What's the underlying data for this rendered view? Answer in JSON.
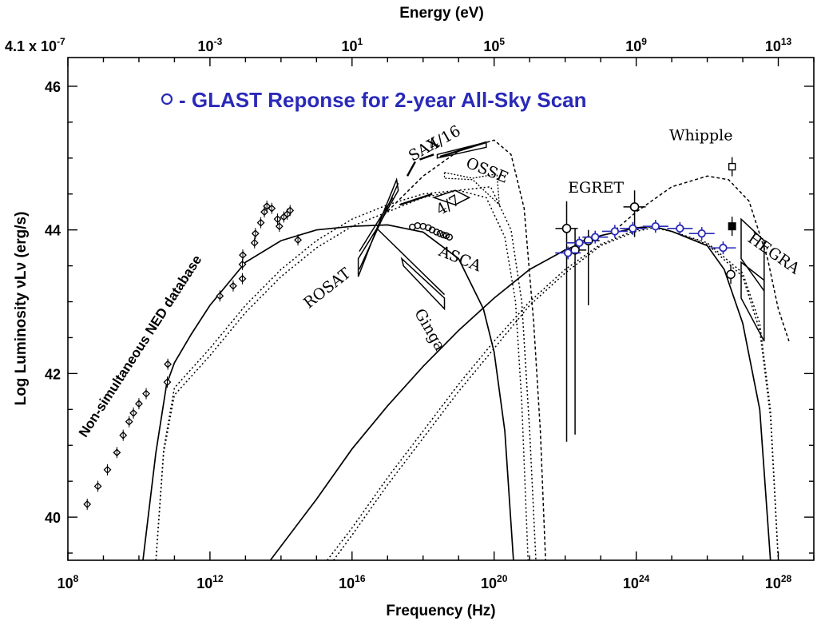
{
  "chart_data": {
    "type": "scatter",
    "title": "- GLAST Reponse for 2-year All-Sky Scan",
    "xlabel": "Frequency (Hz)",
    "ylabel": "Log Luminosity νLν (erg/s)",
    "x2label": "Energy (eV)",
    "x_scale": "log",
    "xlim": [
      100000000.0,
      1e+29
    ],
    "ylim": [
      39.4,
      46.4
    ],
    "x_ticks": [
      {
        "value": 100000000.0,
        "base": "10",
        "exp": "8"
      },
      {
        "value": 1000000000000.0,
        "base": "10",
        "exp": "12"
      },
      {
        "value": 1e+16,
        "base": "10",
        "exp": "16"
      },
      {
        "value": 1e+20,
        "base": "10",
        "exp": "20"
      },
      {
        "value": 1e+24,
        "base": "10",
        "exp": "24"
      },
      {
        "value": 1e+28,
        "base": "10",
        "exp": "28"
      }
    ],
    "y_ticks": [
      40,
      42,
      44,
      46
    ],
    "x2_ticks": [
      {
        "value": 100000000.0,
        "base": "4.1 x 10",
        "exp": "-7"
      },
      {
        "value": 1000000000000.0,
        "base": "10",
        "exp": "-3"
      },
      {
        "value": 1e+16,
        "base": "10",
        "exp": "1"
      },
      {
        "value": 1e+20,
        "base": "10",
        "exp": "5"
      },
      {
        "value": 1e+24,
        "base": "10",
        "exp": "9"
      },
      {
        "value": 1e+28,
        "base": "10",
        "exp": "13"
      }
    ],
    "annotations": [
      {
        "text": "Non-simultaneous NED database",
        "x": 320000000.0,
        "y": 41.1,
        "rotate": -57,
        "style": "sans"
      },
      {
        "text": "ROSAT",
        "x": 600000000000000.0,
        "y": 42.9,
        "rotate": -38,
        "style": "serif"
      },
      {
        "text": "Ginga",
        "x": 5.6e+17,
        "y": 42.85,
        "rotate": 60,
        "style": "serif"
      },
      {
        "text": "ASCA",
        "x": 2.6e+18,
        "y": 43.65,
        "rotate": 22,
        "style": "serif"
      },
      {
        "text": "4/7",
        "x": 3e+18,
        "y": 44.2,
        "rotate": -30,
        "style": "serif"
      },
      {
        "text": "SAX",
        "x": 5e+17,
        "y": 44.95,
        "rotate": -30,
        "style": "serif"
      },
      {
        "text": "4/16",
        "x": 1.8e+18,
        "y": 45.1,
        "rotate": -30,
        "style": "serif"
      },
      {
        "text": "OSSE",
        "x": 1.5e+19,
        "y": 44.88,
        "rotate": 22,
        "style": "serif"
      },
      {
        "text": "EGRET",
        "x": 1.2e+22,
        "y": 44.52,
        "rotate": 0,
        "style": "serif"
      },
      {
        "text": "Whipple",
        "x": 8.5e+24,
        "y": 45.25,
        "rotate": 0,
        "style": "serif"
      },
      {
        "text": "HEGRA",
        "x": 1.3e+27,
        "y": 43.85,
        "rotate": 35,
        "style": "serif"
      }
    ],
    "ned_points": [
      {
        "x": 350000000.0,
        "y": 40.18
      },
      {
        "x": 700000000.0,
        "y": 40.43
      },
      {
        "x": 1300000000.0,
        "y": 40.66
      },
      {
        "x": 2400000000.0,
        "y": 40.9
      },
      {
        "x": 3600000000.0,
        "y": 41.14
      },
      {
        "x": 5300000000.0,
        "y": 41.33
      },
      {
        "x": 7000000000.0,
        "y": 41.45
      },
      {
        "x": 10000000000.0,
        "y": 41.58
      },
      {
        "x": 16000000000.0,
        "y": 41.72
      },
      {
        "x": 63000000000.0,
        "y": 41.88
      },
      {
        "x": 65000000000.0,
        "y": 42.13
      },
      {
        "x": 1900000000000.0,
        "y": 43.08
      },
      {
        "x": 4500000000000.0,
        "y": 43.22
      },
      {
        "x": 8200000000000.0,
        "y": 43.32
      },
      {
        "x": 8200000000000.0,
        "y": 43.52
      },
      {
        "x": 8400000000000.0,
        "y": 43.65
      },
      {
        "x": 18000000000000.0,
        "y": 43.82
      },
      {
        "x": 19000000000000.0,
        "y": 43.95
      },
      {
        "x": 27000000000000.0,
        "y": 44.1
      },
      {
        "x": 34000000000000.0,
        "y": 44.25
      },
      {
        "x": 40000000000000.0,
        "y": 44.33
      },
      {
        "x": 55000000000000.0,
        "y": 44.3
      },
      {
        "x": 80000000000000.0,
        "y": 44.15
      },
      {
        "x": 90000000000000.0,
        "y": 44.05
      },
      {
        "x": 120000000000000.0,
        "y": 44.18
      },
      {
        "x": 150000000000000.0,
        "y": 44.22
      },
      {
        "x": 180000000000000.0,
        "y": 44.27
      },
      {
        "x": 300000000000000.0,
        "y": 43.86
      }
    ],
    "asca_points": [
      {
        "x": 5e+17,
        "y": 44.04
      },
      {
        "x": 7e+17,
        "y": 44.06
      },
      {
        "x": 1e+18,
        "y": 44.05
      },
      {
        "x": 1.4e+18,
        "y": 44.03
      },
      {
        "x": 1.8e+18,
        "y": 44.0
      },
      {
        "x": 2.4e+18,
        "y": 43.97
      },
      {
        "x": 3e+18,
        "y": 43.95
      },
      {
        "x": 3.7e+18,
        "y": 43.93
      },
      {
        "x": 4.5e+18,
        "y": 43.92
      },
      {
        "x": 5.5e+18,
        "y": 43.9
      }
    ],
    "egret_points": [
      {
        "x": 1.1e+22,
        "y": 44.02,
        "ylo": 41.05,
        "yhi": 44.4
      },
      {
        "x": 1.9e+22,
        "y": 43.72,
        "ylo": 41.15,
        "yhi": 44.02
      },
      {
        "x": 4.5e+22,
        "y": 43.85,
        "ylo": 42.95,
        "yhi": 44.0
      },
      {
        "x": 9e+23,
        "y": 44.32,
        "ylo": 43.9,
        "yhi": 44.55
      }
    ],
    "whipple_points": [
      {
        "x": 5e+26,
        "y": 44.88,
        "marker": "open-square"
      },
      {
        "x": 5e+26,
        "y": 44.05,
        "marker": "filled-square"
      },
      {
        "x": 4.6e+26,
        "y": 43.38,
        "marker": "open-circle"
      }
    ],
    "glast_points": [
      {
        "x": 1.2e+22,
        "y": 43.68
      },
      {
        "x": 2.5e+22,
        "y": 43.82
      },
      {
        "x": 7e+22,
        "y": 43.9
      },
      {
        "x": 2.5e+23,
        "y": 43.98
      },
      {
        "x": 8e+23,
        "y": 44.02
      },
      {
        "x": 3.5e+24,
        "y": 44.05
      },
      {
        "x": 1.7e+25,
        "y": 44.02
      },
      {
        "x": 7e+25,
        "y": 43.95
      },
      {
        "x": 2.8e+26,
        "y": 43.75
      }
    ],
    "series_curves": [
      {
        "style": "solid",
        "points": [
          [
            13000000000.0,
            39.4
          ],
          [
            30000000000.0,
            40.9
          ],
          [
            60000000000.0,
            41.85
          ],
          [
            100000000000.0,
            42.15
          ],
          [
            300000000000.0,
            42.55
          ],
          [
            1000000000000.0,
            42.95
          ],
          [
            10000000000000.0,
            43.55
          ],
          [
            100000000000000.0,
            43.85
          ],
          [
            1000000000000000.0,
            44.0
          ],
          [
            1e+16,
            44.05
          ],
          [
            1e+17,
            44.07
          ],
          [
            1e+18,
            43.97
          ],
          [
            1e+19,
            43.6
          ],
          [
            5e+19,
            42.9
          ],
          [
            1e+20,
            42.3
          ],
          [
            2e+20,
            41.2
          ],
          [
            3.5e+20,
            39.4
          ]
        ]
      },
      {
        "style": "dotted",
        "points": [
          [
            30000000000.0,
            39.4
          ],
          [
            50000000000.0,
            40.95
          ],
          [
            100000000000.0,
            41.8
          ],
          [
            1000000000000.0,
            42.35
          ],
          [
            10000000000000.0,
            42.95
          ],
          [
            100000000000000.0,
            43.45
          ],
          [
            1000000000000000.0,
            43.85
          ],
          [
            1e+16,
            44.15
          ],
          [
            1e+17,
            44.35
          ],
          [
            1e+18,
            44.5
          ],
          [
            1e+19,
            44.55
          ],
          [
            6e+19,
            44.45
          ],
          [
            2e+20,
            43.9
          ],
          [
            4e+20,
            43.0
          ],
          [
            6e+20,
            41.6
          ],
          [
            9e+20,
            39.4
          ]
        ]
      },
      {
        "style": "dotted",
        "points": [
          [
            30000000000.0,
            39.4
          ],
          [
            50000000000.0,
            40.9
          ],
          [
            100000000000.0,
            41.7
          ],
          [
            1000000000000.0,
            42.25
          ],
          [
            10000000000000.0,
            42.85
          ],
          [
            100000000000000.0,
            43.35
          ],
          [
            1000000000000000.0,
            43.75
          ],
          [
            1e+16,
            44.05
          ],
          [
            1e+17,
            44.25
          ],
          [
            1e+18,
            44.45
          ],
          [
            1e+19,
            44.55
          ],
          [
            8e+19,
            44.6
          ],
          [
            3e+20,
            44.0
          ],
          [
            6e+20,
            43.0
          ],
          [
            1e+21,
            41.2
          ],
          [
            1.5e+21,
            39.4
          ]
        ]
      },
      {
        "style": "dashed",
        "points": [
          [
            6e+16,
            44.15
          ],
          [
            1e+18,
            44.75
          ],
          [
            1e+19,
            45.1
          ],
          [
            1e+20,
            45.25
          ],
          [
            3e+20,
            45.05
          ],
          [
            7e+20,
            44.3
          ],
          [
            1.3e+21,
            42.7
          ],
          [
            2e+21,
            41.2
          ],
          [
            2.8e+21,
            39.4
          ]
        ]
      },
      {
        "style": "solid",
        "points": [
          [
            50000000000000.0,
            39.4
          ],
          [
            1000000000000000.0,
            40.25
          ],
          [
            1e+16,
            40.95
          ],
          [
            1e+17,
            41.55
          ],
          [
            1e+18,
            42.1
          ],
          [
            1e+19,
            42.6
          ],
          [
            1e+20,
            43.05
          ],
          [
            1e+21,
            43.45
          ],
          [
            1e+22,
            43.72
          ],
          [
            1e+23,
            43.92
          ],
          [
            1e+24,
            44.03
          ],
          [
            3e+24,
            44.05
          ],
          [
            1e+25,
            43.98
          ],
          [
            1e+26,
            43.78
          ],
          [
            3e+26,
            43.45
          ],
          [
            1e+27,
            42.7
          ],
          [
            3e+27,
            41.5
          ],
          [
            6e+27,
            39.4
          ]
        ]
      },
      {
        "style": "dotted",
        "points": [
          [
            2000000000000000.0,
            39.4
          ],
          [
            1e+16,
            39.85
          ],
          [
            1e+17,
            40.55
          ],
          [
            1e+18,
            41.2
          ],
          [
            1e+19,
            41.85
          ],
          [
            1e+20,
            42.45
          ],
          [
            1e+21,
            43.0
          ],
          [
            1e+22,
            43.45
          ],
          [
            1e+23,
            43.8
          ],
          [
            1e+24,
            44.0
          ],
          [
            3e+24,
            44.05
          ],
          [
            1e+25,
            43.98
          ],
          [
            1e+26,
            43.8
          ],
          [
            1e+27,
            43.35
          ],
          [
            3e+27,
            42.6
          ],
          [
            6e+27,
            41.4
          ],
          [
            1e+28,
            39.4
          ]
        ]
      },
      {
        "style": "dotted",
        "points": [
          [
            3000000000000000.0,
            39.4
          ],
          [
            1e+16,
            39.75
          ],
          [
            1e+17,
            40.45
          ],
          [
            1e+18,
            41.1
          ],
          [
            1e+19,
            41.75
          ],
          [
            1e+20,
            42.35
          ],
          [
            1e+21,
            42.95
          ],
          [
            1e+22,
            43.4
          ],
          [
            1e+23,
            43.78
          ],
          [
            1e+24,
            43.98
          ],
          [
            3e+24,
            44.03
          ],
          [
            1e+25,
            43.98
          ],
          [
            1e+26,
            43.82
          ],
          [
            1e+27,
            43.4
          ],
          [
            3e+27,
            42.7
          ],
          [
            6e+27,
            41.5
          ],
          [
            1e+28,
            39.4
          ]
        ]
      },
      {
        "style": "dashed",
        "points": [
          [
            2e+23,
            43.95
          ],
          [
            1e+24,
            44.25
          ],
          [
            1e+25,
            44.6
          ],
          [
            1e+26,
            44.75
          ],
          [
            4e+26,
            44.7
          ],
          [
            1.5e+27,
            44.4
          ],
          [
            5e+27,
            43.6
          ],
          [
            1e+28,
            42.9
          ],
          [
            2e+28,
            42.45
          ]
        ]
      }
    ]
  }
}
